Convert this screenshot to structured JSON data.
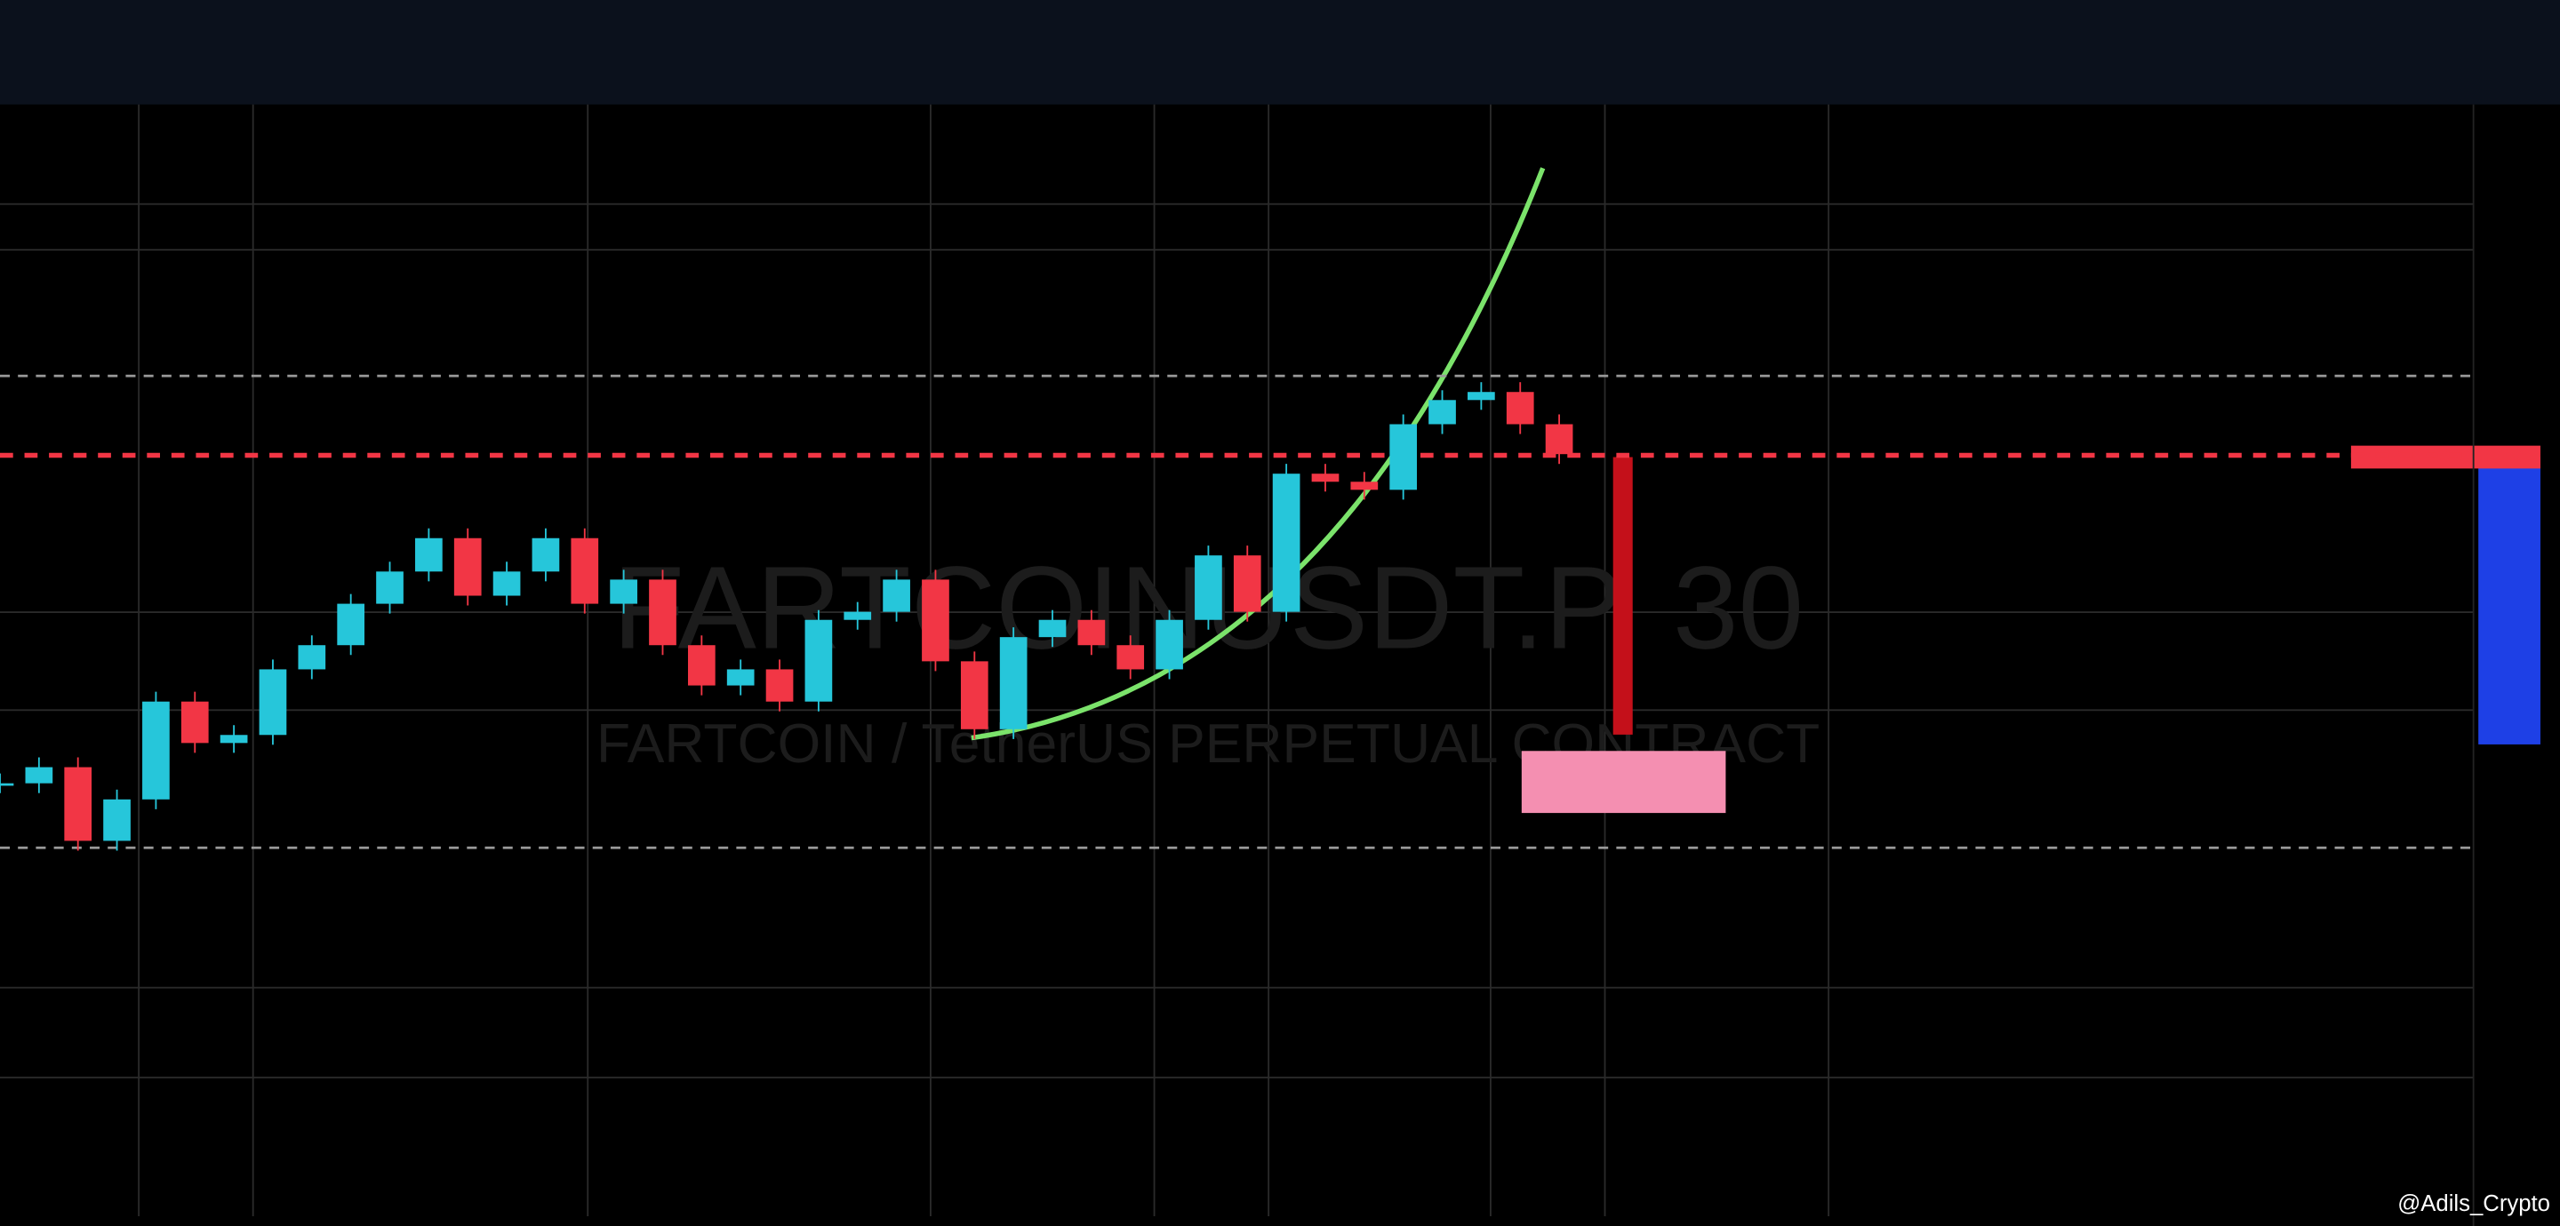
{
  "chart_data": {
    "type": "candle",
    "title": "FARTCOINUSDT.P, 30",
    "subtitle": "FARTCOIN / TetherUS PERPETUAL CONTRACT",
    "watermark": "@Adils_Crypto",
    "values": [
      1.357,
      1.371,
      1.307,
      1.343,
      1.428,
      1.392,
      1.399,
      1.456,
      1.477,
      1.513,
      1.541,
      1.57,
      1.52,
      1.541,
      1.57,
      1.513,
      1.534,
      1.477,
      1.442,
      1.456,
      1.428,
      1.499,
      1.506,
      1.534,
      1.463,
      1.404,
      1.484,
      1.499,
      1.477,
      1.456,
      1.499,
      1.555,
      1.506,
      1.626,
      1.619,
      1.612,
      1.669,
      1.69,
      1.697,
      1.669,
      1.643
    ],
    "up_color": "#26c6da",
    "down_color": "#f23645",
    "ylim": [
      1.3,
      1.9
    ],
    "levels": [
      1.711,
      1.642,
      1.301
    ]
  }
}
